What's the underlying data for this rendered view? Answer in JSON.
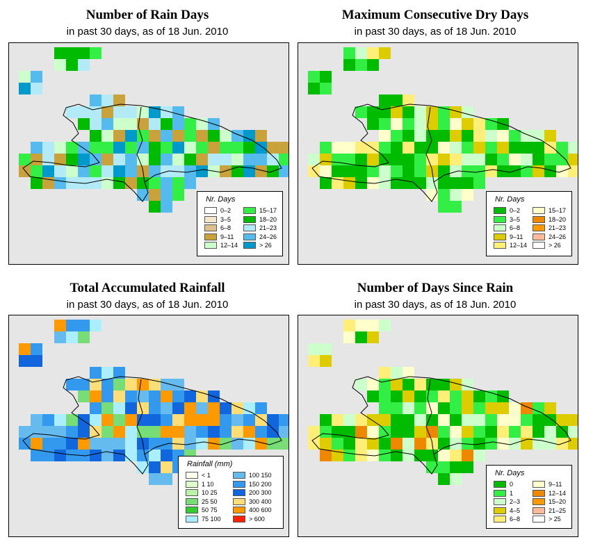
{
  "panels": [
    {
      "id": "rain-days",
      "title": "Number of Rain Days",
      "subtitle": "in past 30 days, as of  18 Jun. 2010",
      "legend": {
        "title": "Nr. Days",
        "items": [
          {
            "label": "0–2",
            "color": "#ffffff"
          },
          {
            "label": "3–5",
            "color": "#f3e6cc"
          },
          {
            "label": "6–8",
            "color": "#dcc08e"
          },
          {
            "label": "9–11",
            "color": "#c9a23c"
          },
          {
            "label": "12–14",
            "color": "#ccffcc"
          },
          {
            "label": "15–17",
            "color": "#33ee44"
          },
          {
            "label": "18–20",
            "color": "#00bb00"
          },
          {
            "label": "21–23",
            "color": "#b3eaf7"
          },
          {
            "label": "24–26",
            "color": "#55bbee"
          },
          {
            "label": "> 26",
            "color": "#0099cc"
          }
        ]
      }
    },
    {
      "id": "dry-days",
      "title": "Maximum Consecutive Dry Days",
      "subtitle": "in past 30 days, as of  18 Jun. 2010",
      "legend": {
        "title": "Nr. Days",
        "items": [
          {
            "label": "0–2",
            "color": "#00bb00"
          },
          {
            "label": "3–5",
            "color": "#33ee44"
          },
          {
            "label": "6–8",
            "color": "#ccffcc"
          },
          {
            "label": "9–11",
            "color": "#ddcc00"
          },
          {
            "label": "12–14",
            "color": "#ffee77"
          },
          {
            "label": "15–17",
            "color": "#ffffcc"
          },
          {
            "label": "18–20",
            "color": "#ee8800"
          },
          {
            "label": "21–23",
            "color": "#ff9900"
          },
          {
            "label": "24–26",
            "color": "#ffbb99"
          },
          {
            "label": "> 26",
            "color": "#ffffff"
          }
        ]
      }
    },
    {
      "id": "rainfall",
      "title": "Total Accumulated Rainfall",
      "subtitle": "in past 30 days, as of  18 Jun. 2010",
      "legend": {
        "title": "Rainfall (mm)",
        "items": [
          {
            "label": "< 1",
            "color": "#ffffee"
          },
          {
            "label": "1    10",
            "color": "#ddffcc"
          },
          {
            "label": "10    25",
            "color": "#bbf2aa"
          },
          {
            "label": "25    50",
            "color": "#77dd77"
          },
          {
            "label": "50    75",
            "color": "#33cc33"
          },
          {
            "label": "75   100",
            "color": "#aaeeff"
          },
          {
            "label": "100  150",
            "color": "#66bbee"
          },
          {
            "label": "150  200",
            "color": "#3399ee"
          },
          {
            "label": "200  300",
            "color": "#1166dd"
          },
          {
            "label": "300  400",
            "color": "#ffdd77"
          },
          {
            "label": "400  600",
            "color": "#ff9900"
          },
          {
            "label": "> 600",
            "color": "#ff2200"
          }
        ]
      }
    },
    {
      "id": "days-since",
      "title": "Number of Days Since Rain",
      "subtitle": "in past 30 days, as of  18 Jun. 2010",
      "legend": {
        "title": "Nr. Days",
        "items": [
          {
            "label": "0",
            "color": "#00bb00"
          },
          {
            "label": "1",
            "color": "#33ee44"
          },
          {
            "label": "2–3",
            "color": "#ccffcc"
          },
          {
            "label": "4–5",
            "color": "#ddcc00"
          },
          {
            "label": "6–8",
            "color": "#ffee77"
          },
          {
            "label": "9–11",
            "color": "#ffffcc"
          },
          {
            "label": "12–14",
            "color": "#ee8800"
          },
          {
            "label": "15–20",
            "color": "#ff9900"
          },
          {
            "label": "21–25",
            "color": "#ffbb99"
          },
          {
            "label": "> 25",
            "color": "#ffffff"
          }
        ]
      }
    }
  ]
}
